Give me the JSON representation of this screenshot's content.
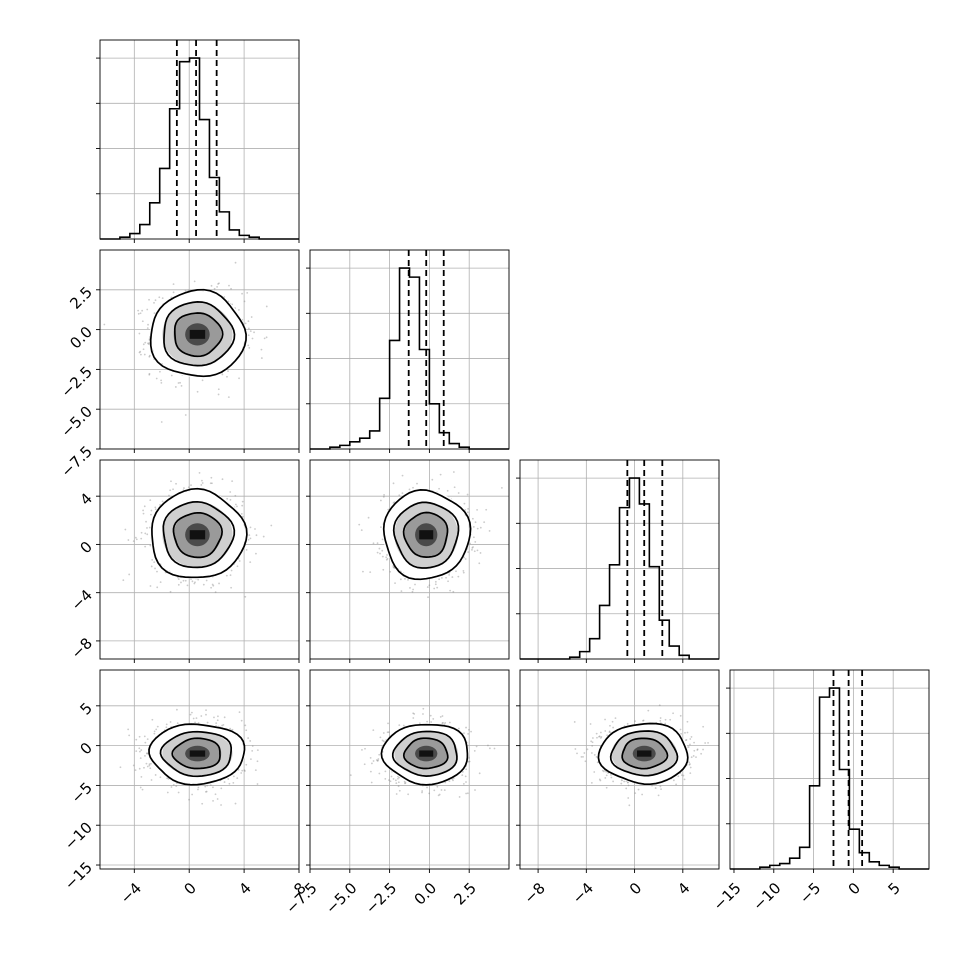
{
  "chart_data": {
    "type": "corner",
    "n_params": 4,
    "grid": true,
    "quantile_lines": "dashed",
    "colors": {
      "line": "#000000",
      "grid": "#b0b0b0",
      "points": "#8c8c8c"
    },
    "params": [
      {
        "range": [
          -6.5,
          8
        ],
        "ticks": [
          -4,
          0,
          4,
          8
        ],
        "tick_labels": [
          "−4",
          "0",
          "4",
          "8"
        ],
        "quantiles": [
          -0.9,
          0.5,
          2.0
        ],
        "hist": [
          0,
          0,
          0.01,
          0.03,
          0.08,
          0.2,
          0.39,
          0.72,
          0.98,
          1.0,
          0.66,
          0.34,
          0.15,
          0.05,
          0.02,
          0.01,
          0,
          0,
          0,
          0
        ]
      },
      {
        "range": [
          -7.5,
          5
        ],
        "ticks": [
          -7.5,
          -5.0,
          -2.5,
          0.0,
          2.5
        ],
        "tick_labels": [
          "−7.5",
          "−5.0",
          "−2.5",
          "0.0",
          "2.5"
        ],
        "quantiles": [
          -1.3,
          -0.2,
          0.9
        ],
        "hist": [
          0,
          0,
          0.01,
          0.02,
          0.04,
          0.06,
          0.1,
          0.28,
          0.6,
          1.0,
          0.95,
          0.55,
          0.25,
          0.09,
          0.03,
          0.01,
          0,
          0,
          0,
          0
        ]
      },
      {
        "range": [
          -9.5,
          7
        ],
        "ticks": [
          -8,
          -4,
          0,
          4
        ],
        "tick_labels": [
          "−8",
          "−4",
          "0",
          "4"
        ],
        "quantiles": [
          -0.6,
          0.8,
          2.3
        ],
        "hist": [
          0,
          0,
          0,
          0,
          0,
          0.01,
          0.04,
          0.11,
          0.29,
          0.51,
          0.82,
          0.98,
          0.84,
          0.5,
          0.21,
          0.07,
          0.02,
          0,
          0,
          0
        ]
      },
      {
        "range": [
          -15.5,
          9.5
        ],
        "ticks": [
          -15,
          -10,
          -5,
          0,
          5
        ],
        "tick_labels": [
          "−15",
          "−10",
          "−5",
          "0",
          "5"
        ],
        "quantiles": [
          -2.5,
          -0.6,
          1.1
        ],
        "hist": [
          0,
          0,
          0,
          0.01,
          0.02,
          0.03,
          0.06,
          0.12,
          0.46,
          0.95,
          1.0,
          0.55,
          0.22,
          0.09,
          0.04,
          0.02,
          0.01,
          0,
          0,
          0
        ]
      }
    ],
    "pairs": [
      {
        "row": 1,
        "col": 0,
        "center": [
          0.6,
          -0.3
        ],
        "sigma": [
          1.6,
          1.25
        ]
      },
      {
        "row": 2,
        "col": 0,
        "center": [
          0.6,
          0.8
        ],
        "sigma": [
          1.6,
          1.7
        ]
      },
      {
        "row": 2,
        "col": 1,
        "center": [
          -0.2,
          0.8
        ],
        "sigma": [
          1.25,
          1.7
        ]
      },
      {
        "row": 3,
        "col": 0,
        "center": [
          0.6,
          -1.0
        ],
        "sigma": [
          1.6,
          1.75
        ]
      },
      {
        "row": 3,
        "col": 1,
        "center": [
          -0.2,
          -1.0
        ],
        "sigma": [
          1.25,
          1.75
        ]
      },
      {
        "row": 3,
        "col": 2,
        "center": [
          0.8,
          -1.0
        ],
        "sigma": [
          1.7,
          1.75
        ]
      }
    ]
  }
}
